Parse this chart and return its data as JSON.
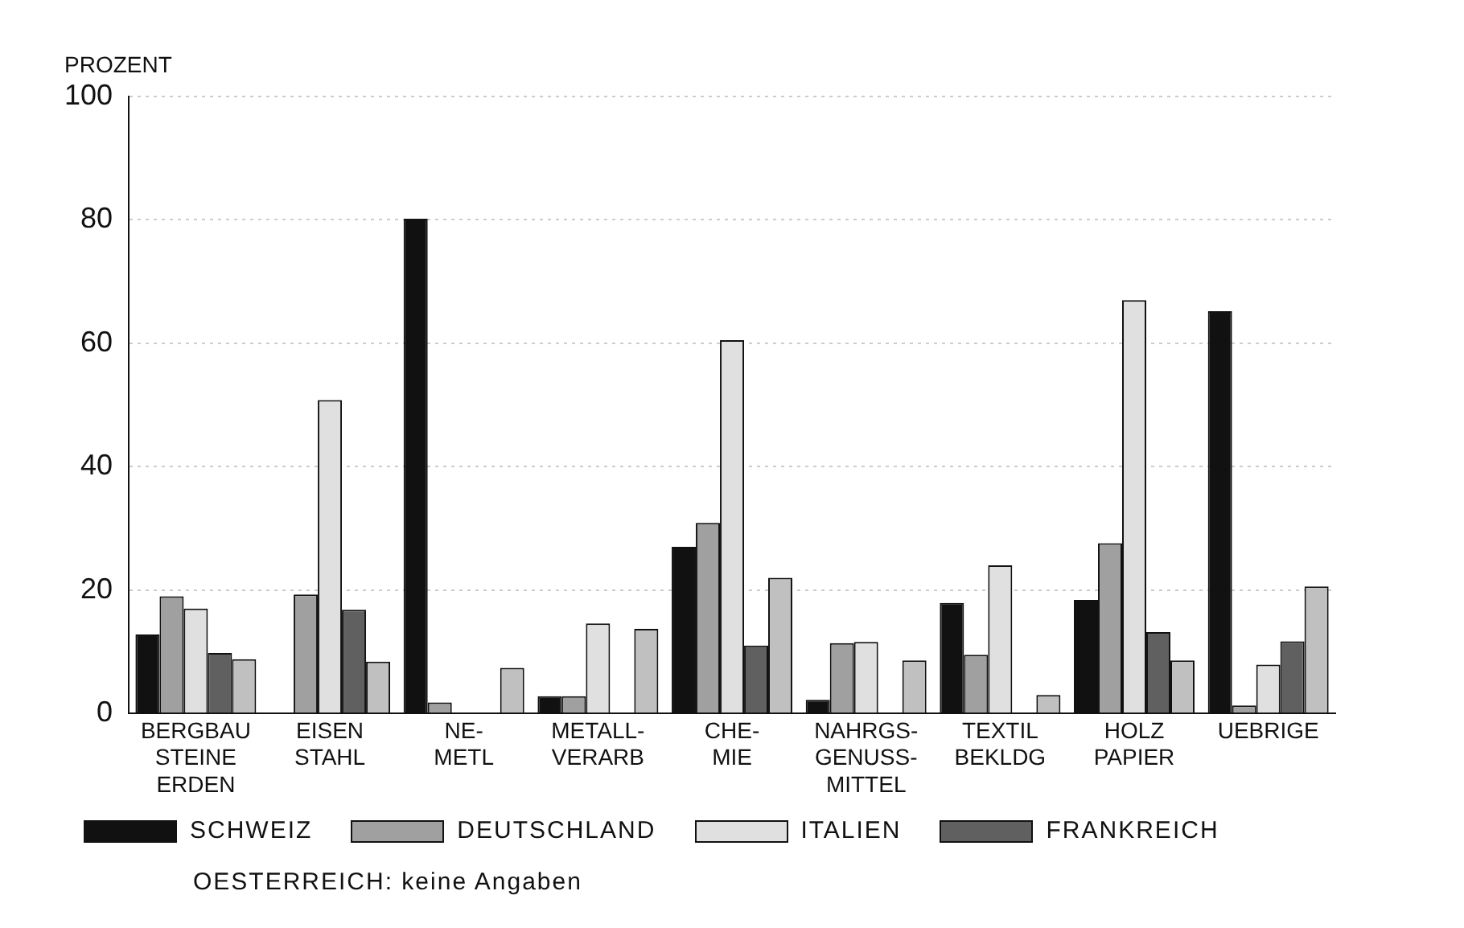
{
  "chart_data": {
    "type": "bar",
    "ylabel": "PROZENT",
    "categories": [
      "BERGBAU\nSTEINE\nERDEN",
      "EISEN\nSTAHL",
      "NE-\nMETL",
      "METALL-\nVERARB",
      "CHE-\nMIE",
      "NAHRGS-\nGENUSS-\nMITTEL",
      "TEXTIL\nBEKLDG",
      "HOLZ\nPAPIER",
      "UEBRIGE"
    ],
    "series": [
      {
        "name": "SCHWEIZ",
        "color": "#111111",
        "values": [
          12.8,
          null,
          80.2,
          2.8,
          27,
          2.2,
          17.9,
          18.4,
          65.2
        ]
      },
      {
        "name": "DEUTSCHLAND",
        "color": "#a0a0a0",
        "values": [
          19,
          19.3,
          1.8,
          2.8,
          30.9,
          11.4,
          9.5,
          27.6,
          1.3
        ]
      },
      {
        "name": "ITALIEN",
        "color": "#e0e0e0",
        "values": [
          17,
          50.8,
          null,
          14.6,
          60.5,
          11.6,
          24,
          67,
          7.9
        ]
      },
      {
        "name": "FRANKREICH",
        "color": "#606060",
        "values": [
          9.8,
          16.8,
          null,
          null,
          11,
          null,
          null,
          13.2,
          11.7
        ]
      },
      {
        "color": "#c0c0c0",
        "values": [
          8.8,
          8.4,
          7.4,
          13.7,
          22,
          8.6,
          3,
          8.6,
          20.6
        ]
      }
    ],
    "ylim": [
      0,
      100
    ],
    "yticks": [
      0,
      20,
      40,
      60,
      80,
      100
    ],
    "grid": "y",
    "legend": "bottom",
    "annotations": [
      "OESTERREICH: keine Angaben"
    ]
  }
}
